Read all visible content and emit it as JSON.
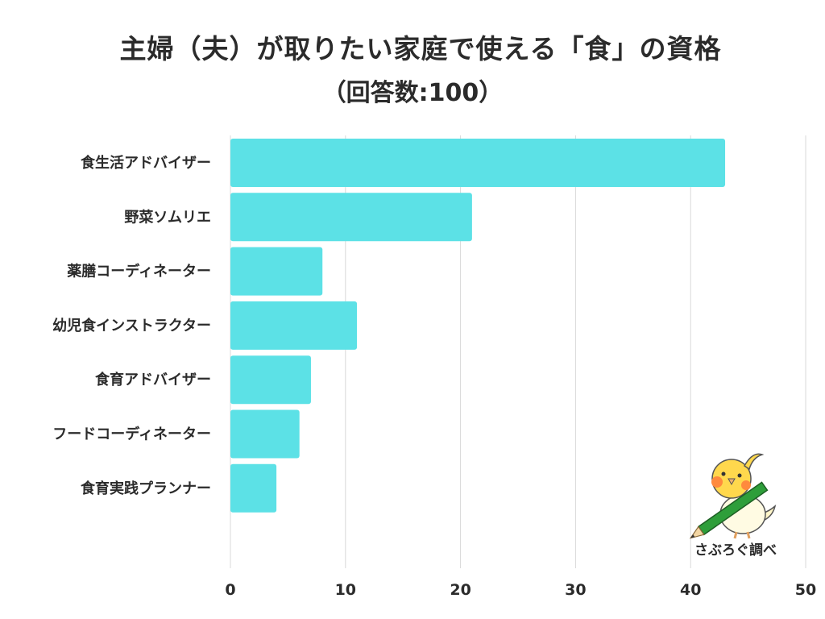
{
  "chart_data": {
    "type": "bar",
    "orientation": "horizontal",
    "title": "主婦（夫）が取りたい家庭で使える「食」の資格",
    "subtitle": "（回答数:100）",
    "categories": [
      "食生活アドバイザー",
      "野菜ソムリエ",
      "薬膳コーディネーター",
      "幼児食インストラクター",
      "食育アドバイザー",
      "フードコーディネーター",
      "食育実践プランナー"
    ],
    "values": [
      43,
      21,
      8,
      11,
      7,
      6,
      4
    ],
    "xlim": [
      0,
      50
    ],
    "xticks": [
      0,
      10,
      20,
      30,
      40,
      50
    ],
    "grid": true,
    "bar_color": "#5ce1e6"
  },
  "watermark": {
    "label": "さぶろぐ調べ",
    "icon": "bird-with-pencil-icon"
  }
}
